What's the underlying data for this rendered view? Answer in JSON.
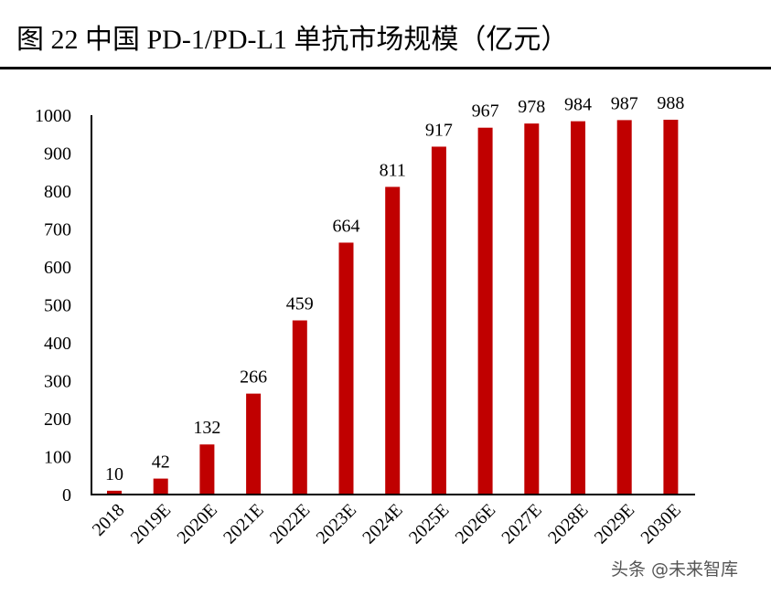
{
  "title": "图 22 中国 PD-1/PD-L1 单抗市场规模（亿元）",
  "watermark": "头条 @未来智库",
  "chart_data": {
    "type": "bar",
    "title": "图 22 中国 PD-1/PD-L1 单抗市场规模（亿元）",
    "categories": [
      "2018",
      "2019E",
      "2020E",
      "2021E",
      "2022E",
      "2023E",
      "2024E",
      "2025E",
      "2026E",
      "2027E",
      "2028E",
      "2029E",
      "2030E"
    ],
    "values": [
      10,
      42,
      132,
      266,
      459,
      664,
      811,
      917,
      967,
      978,
      984,
      987,
      988
    ],
    "ylim": [
      0,
      1000
    ],
    "yticks": [
      0,
      100,
      200,
      300,
      400,
      500,
      600,
      700,
      800,
      900,
      1000
    ],
    "grid": false,
    "legend": "none",
    "bar_color": "#C00000",
    "data_labels": true
  }
}
